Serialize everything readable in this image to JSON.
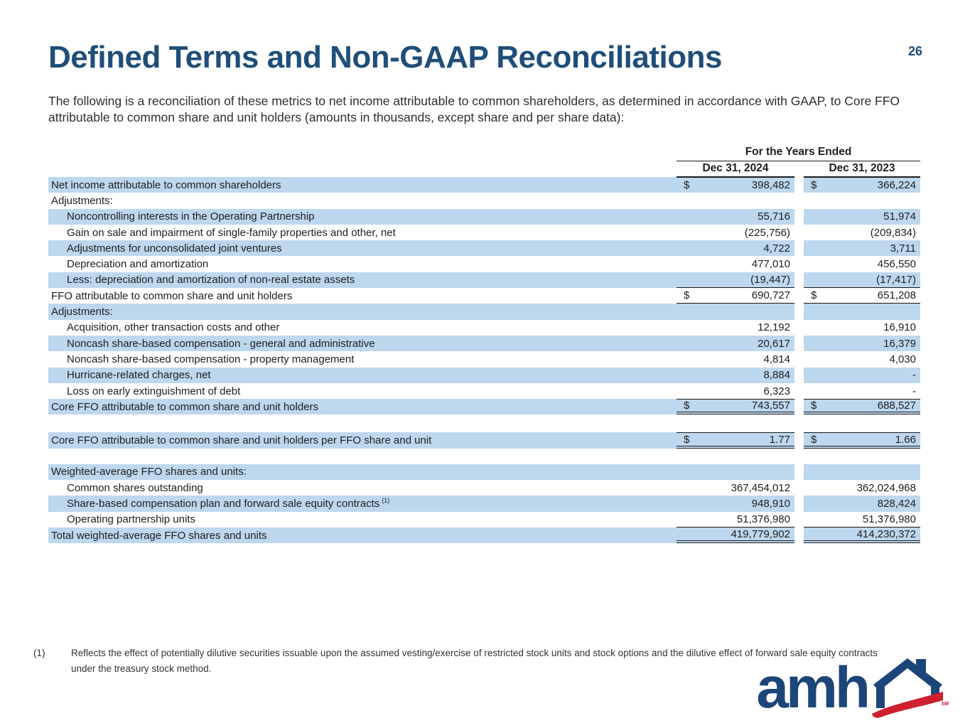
{
  "page": {
    "title": "Defined Terms and Non-GAAP Reconciliations",
    "page_number": "26",
    "intro": "The following is a reconciliation of these metrics to net income attributable to common shareholders, as determined in accordance with GAAP, to Core FFO attributable to common share and unit holders (amounts in thousands, except share and per share data):"
  },
  "table": {
    "group_header": "For the Years Ended",
    "col_headers": [
      "Dec 31, 2024",
      "Dec 31, 2023"
    ],
    "currency_symbol": "$",
    "rows": [
      {
        "label": "Net income attributable to common shareholders",
        "indent": false,
        "dollar": true,
        "v1": "398,482",
        "v2": "366,224",
        "shade": "b",
        "rules": "rt"
      },
      {
        "label": "Adjustments:",
        "indent": false,
        "dollar": false,
        "v1": "",
        "v2": "",
        "shade": "w",
        "rules": ""
      },
      {
        "label": "Noncontrolling interests in the Operating Partnership",
        "indent": true,
        "dollar": false,
        "v1": "55,716",
        "v2": "51,974",
        "shade": "b",
        "rules": ""
      },
      {
        "label": "Gain on sale and impairment of single-family properties and other, net",
        "indent": true,
        "dollar": false,
        "v1": "(225,756)",
        "v2": "(209,834)",
        "shade": "w",
        "rules": ""
      },
      {
        "label": "Adjustments for unconsolidated joint ventures",
        "indent": true,
        "dollar": false,
        "v1": "4,722",
        "v2": "3,711",
        "shade": "b",
        "rules": ""
      },
      {
        "label": "Depreciation and amortization",
        "indent": true,
        "dollar": false,
        "v1": "477,010",
        "v2": "456,550",
        "shade": "w",
        "rules": ""
      },
      {
        "label": "Less: depreciation and amortization of non-real estate assets",
        "indent": true,
        "dollar": false,
        "v1": "(19,447)",
        "v2": "(17,417)",
        "shade": "b",
        "rules": "rb"
      },
      {
        "label": "FFO attributable to common share and unit holders",
        "indent": false,
        "dollar": true,
        "v1": "690,727",
        "v2": "651,208",
        "shade": "w",
        "rules": "rb"
      },
      {
        "label": "Adjustments:",
        "indent": false,
        "dollar": false,
        "v1": "",
        "v2": "",
        "shade": "b",
        "rules": ""
      },
      {
        "label": "Acquisition, other transaction costs and other",
        "indent": true,
        "dollar": false,
        "v1": "12,192",
        "v2": "16,910",
        "shade": "w",
        "rules": ""
      },
      {
        "label": "Noncash share-based compensation - general and administrative",
        "indent": true,
        "dollar": false,
        "v1": "20,617",
        "v2": "16,379",
        "shade": "b",
        "rules": ""
      },
      {
        "label": "Noncash share-based compensation - property management",
        "indent": true,
        "dollar": false,
        "v1": "4,814",
        "v2": "4,030",
        "shade": "w",
        "rules": ""
      },
      {
        "label": "Hurricane-related charges, net",
        "indent": true,
        "dollar": false,
        "v1": "8,884",
        "v2": "-",
        "shade": "b",
        "rules": ""
      },
      {
        "label": "Loss on early extinguishment of debt",
        "indent": true,
        "dollar": false,
        "v1": "6,323",
        "v2": "-",
        "shade": "w",
        "rules": ""
      },
      {
        "label": "Core FFO attributable to common share and unit holders",
        "indent": false,
        "dollar": true,
        "v1": "743,557",
        "v2": "688,527",
        "shade": "b",
        "rules": "rt rd"
      },
      {
        "type": "spacer",
        "height": 25
      },
      {
        "label": "Core FFO attributable to common share and unit holders per FFO share and unit",
        "indent": false,
        "dollar": true,
        "v1": "1.77",
        "v2": "1.66",
        "shade": "b",
        "rules": "rt rd"
      },
      {
        "type": "spacer",
        "height": 22
      },
      {
        "label": "Weighted-average FFO shares and units:",
        "indent": false,
        "dollar": false,
        "v1": "",
        "v2": "",
        "shade": "b",
        "rules": ""
      },
      {
        "label": "Common shares outstanding",
        "indent": true,
        "dollar": false,
        "v1": "367,454,012",
        "v2": "362,024,968",
        "shade": "w",
        "rules": ""
      },
      {
        "label": "Share-based compensation plan and forward sale equity contracts",
        "sup": "(1)",
        "indent": true,
        "dollar": false,
        "v1": "948,910",
        "v2": "828,424",
        "shade": "b",
        "rules": ""
      },
      {
        "label": "Operating partnership units",
        "indent": true,
        "dollar": false,
        "v1": "51,376,980",
        "v2": "51,376,980",
        "shade": "w",
        "rules": "rb"
      },
      {
        "label": "Total weighted-average FFO shares and units",
        "indent": false,
        "dollar": false,
        "v1": "419,779,902",
        "v2": "414,230,372",
        "shade": "b",
        "rules": "rd"
      }
    ]
  },
  "footnote": {
    "marker": "(1)",
    "text": "Reflects the effect of potentially dilutive securities issuable upon the assumed vesting/exercise of restricted stock units and stock options and the dilutive effect of forward sale equity contracts under the treasury stock method."
  },
  "logo": {
    "wordmark": "amh",
    "service_mark": "SM"
  },
  "colors": {
    "accent_navy": "#1F4E79",
    "row_stripe_blue": "#BDD7EE",
    "logo_navy": "#1C4679",
    "logo_red": "#CE2030"
  }
}
